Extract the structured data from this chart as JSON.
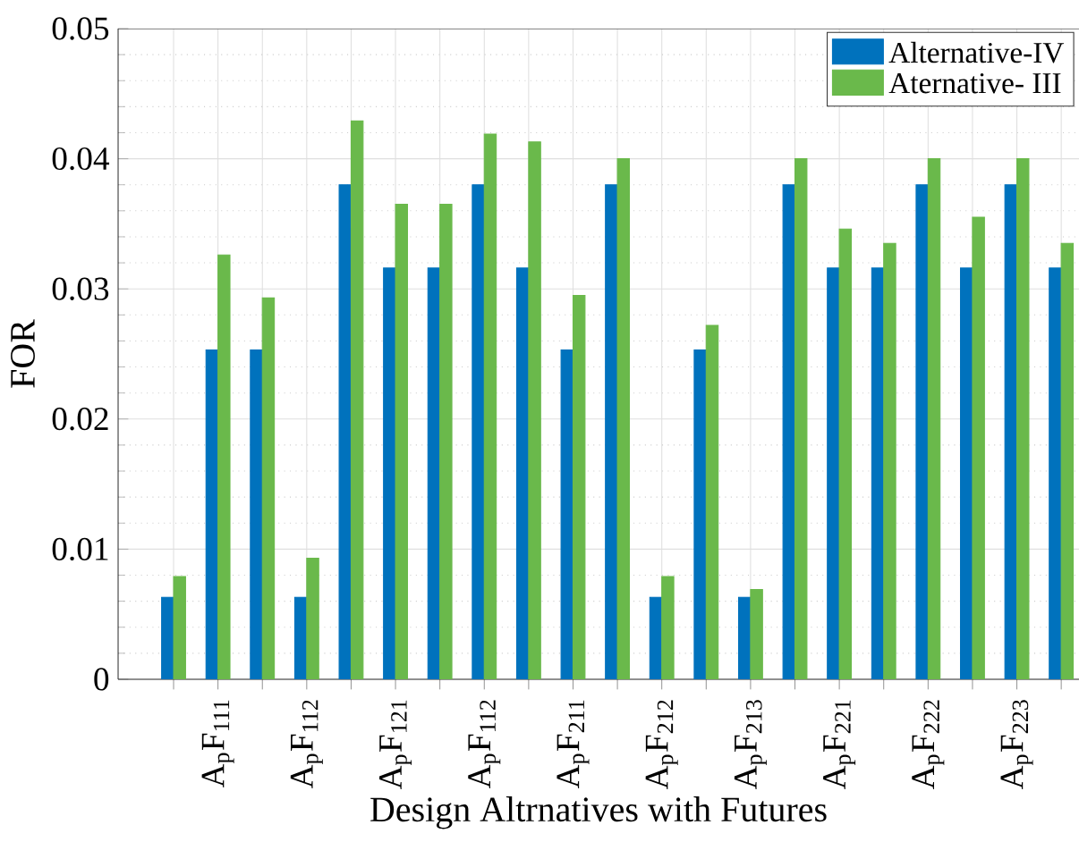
{
  "chart_data": {
    "type": "bar",
    "xlabel": "Design Altrnatives with Futures",
    "ylabel": "FOR",
    "categories": [
      null,
      "A$_{p}$F$_{111}$",
      null,
      "A$_{p}$F$_{112}$",
      null,
      "A$_{p}$F$_{121}$",
      null,
      "A$_{p}$F$_{112}$",
      null,
      "A$_{p}$F$_{211}$",
      null,
      "A$_{p}$F$_{212}$",
      null,
      "A$_{p}$F$_{213}$",
      null,
      "A$_{p}$F$_{221}$",
      null,
      "A$_{p}$F$_{222}$",
      null,
      "A$_{p}$F$_{223}$",
      null
    ],
    "series": [
      {
        "name": "Alternative-IV",
        "color": "#0072bd",
        "values": [
          0.0063,
          0.0253,
          0.0253,
          0.0063,
          0.038,
          0.0316,
          0.0316,
          0.038,
          0.0316,
          0.0253,
          0.038,
          0.0063,
          0.0253,
          0.0063,
          0.038,
          0.0316,
          0.0316,
          0.038,
          0.0316,
          0.038,
          0.0316
        ]
      },
      {
        "name": "Aternative- III",
        "color": "#6ab94b",
        "values": [
          0.0079,
          0.0326,
          0.0293,
          0.0093,
          0.0429,
          0.0365,
          0.0365,
          0.0419,
          0.0413,
          0.0295,
          0.04,
          0.0079,
          0.0272,
          0.0069,
          0.04,
          0.0346,
          0.0335,
          0.04,
          0.0355,
          0.04,
          0.0335
        ]
      }
    ],
    "ylim": [
      0,
      0.05
    ],
    "yticks": [
      0,
      0.01,
      0.02,
      0.03,
      0.04,
      0.05
    ],
    "grid": true,
    "legend": "top right"
  }
}
